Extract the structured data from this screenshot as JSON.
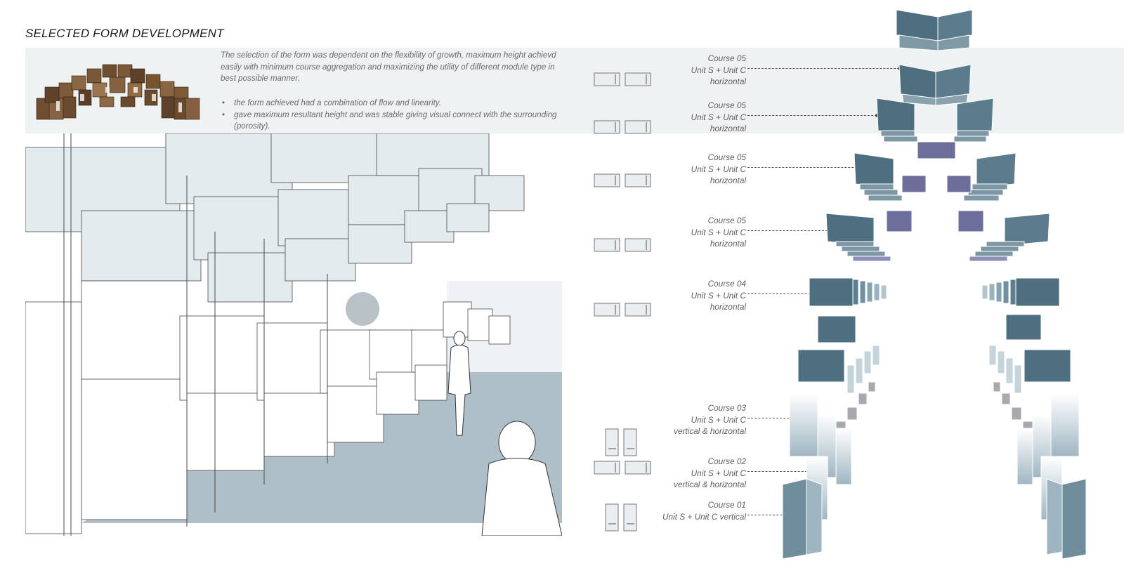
{
  "title": "SELECTED FORM DEVELOPMENT",
  "intro": "The selection of the form was dependent on the flexibility of growth, maximum height achievd easily with minimum course aggregation and maximizing the utility of different module type in best possible manner.",
  "bullets": [
    "the form achieved had a combination of flow and linearity.",
    "gave maximum resultant height and was stable giving visual connect  with the surrounding (porosity)."
  ],
  "courses": [
    {
      "name": "Course 05",
      "units": "Unit S + Unit C",
      "orientation": "horizontal"
    },
    {
      "name": "Course 05",
      "units": "Unit S + Unit C",
      "orientation": "horizontal"
    },
    {
      "name": "Course 05",
      "units": "Unit S + Unit C",
      "orientation": "horizontal"
    },
    {
      "name": "Course 05",
      "units": "Unit S + Unit C",
      "orientation": "horizontal"
    },
    {
      "name": "Course 04",
      "units": "Unit S + Unit C",
      "orientation": "horizontal"
    },
    {
      "name": "Course 03",
      "units": "Unit S + Unit C",
      "orientation": "vertical & horizontal"
    },
    {
      "name": "Course 02",
      "units": "Unit S + Unit C",
      "orientation": "vertical & horizontal"
    },
    {
      "name": "Course 01",
      "units": "Unit S + Unit C vertical",
      "orientation": ""
    }
  ],
  "colors": {
    "panel_dark": "#4d6f80",
    "panel_purple": "#6d6e9a",
    "panel_light": "#dfe7ec",
    "band": "#eef2f2",
    "ground": "#aebfc8",
    "wood": "#7a5a3a"
  }
}
